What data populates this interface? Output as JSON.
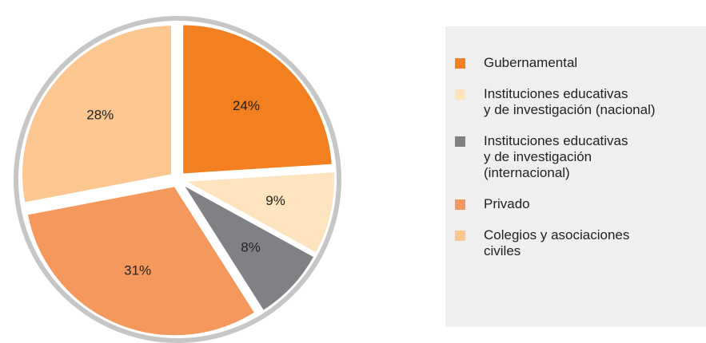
{
  "chart_data": {
    "type": "pie",
    "categories": [
      "Gubernamental",
      "Instituciones educativas\ny de investigación (nacional)",
      "Instituciones educativas\ny de investigación\n(internacional)",
      "Privado",
      "Colegios y asociaciones\nciviles"
    ],
    "values": [
      24,
      9,
      8,
      31,
      28
    ],
    "value_labels": [
      "24%",
      "9%",
      "8%",
      "31%",
      "28%"
    ],
    "colors": [
      "#f28020",
      "#fde4be",
      "#808184",
      "#f5985e",
      "#fbc690"
    ]
  }
}
